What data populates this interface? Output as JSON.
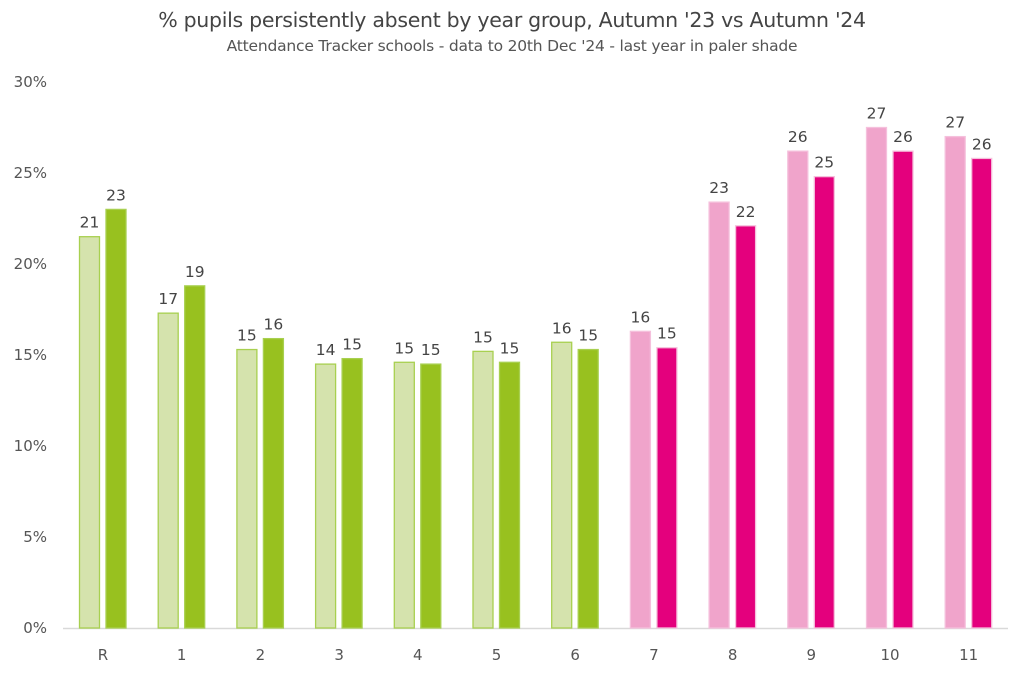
{
  "chart_data": {
    "type": "bar",
    "title": "% pupils persistently absent by year group, Autumn '23 vs Autumn '24",
    "subtitle": "Attendance Tracker schools - data to 20th Dec '24 - last year in paler shade",
    "xlabel": "",
    "ylabel": "",
    "ylim": [
      0,
      30
    ],
    "yticks": [
      0,
      5,
      10,
      15,
      20,
      25,
      30
    ],
    "ytick_labels": [
      "0%",
      "5%",
      "10%",
      "15%",
      "20%",
      "25%",
      "30%"
    ],
    "categories": [
      "R",
      "1",
      "2",
      "3",
      "4",
      "5",
      "6",
      "7",
      "8",
      "9",
      "10",
      "11"
    ],
    "grid": false,
    "legend": "none",
    "series": [
      {
        "name": "Autumn '23",
        "values": [
          21.5,
          17.3,
          15.3,
          14.5,
          14.6,
          15.2,
          15.7,
          16.3,
          23.4,
          26.2,
          27.5,
          27.0
        ],
        "labels": [
          "21",
          "17",
          "15",
          "14",
          "15",
          "15",
          "16",
          "16",
          "23",
          "26",
          "27",
          "27"
        ]
      },
      {
        "name": "Autumn '24",
        "values": [
          23.0,
          18.8,
          15.9,
          14.8,
          14.5,
          14.6,
          15.3,
          15.4,
          22.1,
          24.8,
          26.2,
          25.8
        ],
        "labels": [
          "23",
          "19",
          "16",
          "15",
          "15",
          "15",
          "15",
          "15",
          "22",
          "25",
          "26",
          "26"
        ]
      }
    ],
    "colors": {
      "primary_pale_fill": "#d5e3ad",
      "primary_pale_border": "#a8d050",
      "primary_dark": "#98c11f",
      "secondary_pale_fill": "#f0a4cb",
      "secondary_pale_border": "#f5c0dc",
      "secondary_dark": "#e4007d",
      "axis": "#d9d9d9"
    },
    "secondary_phase_start_index": 7
  }
}
